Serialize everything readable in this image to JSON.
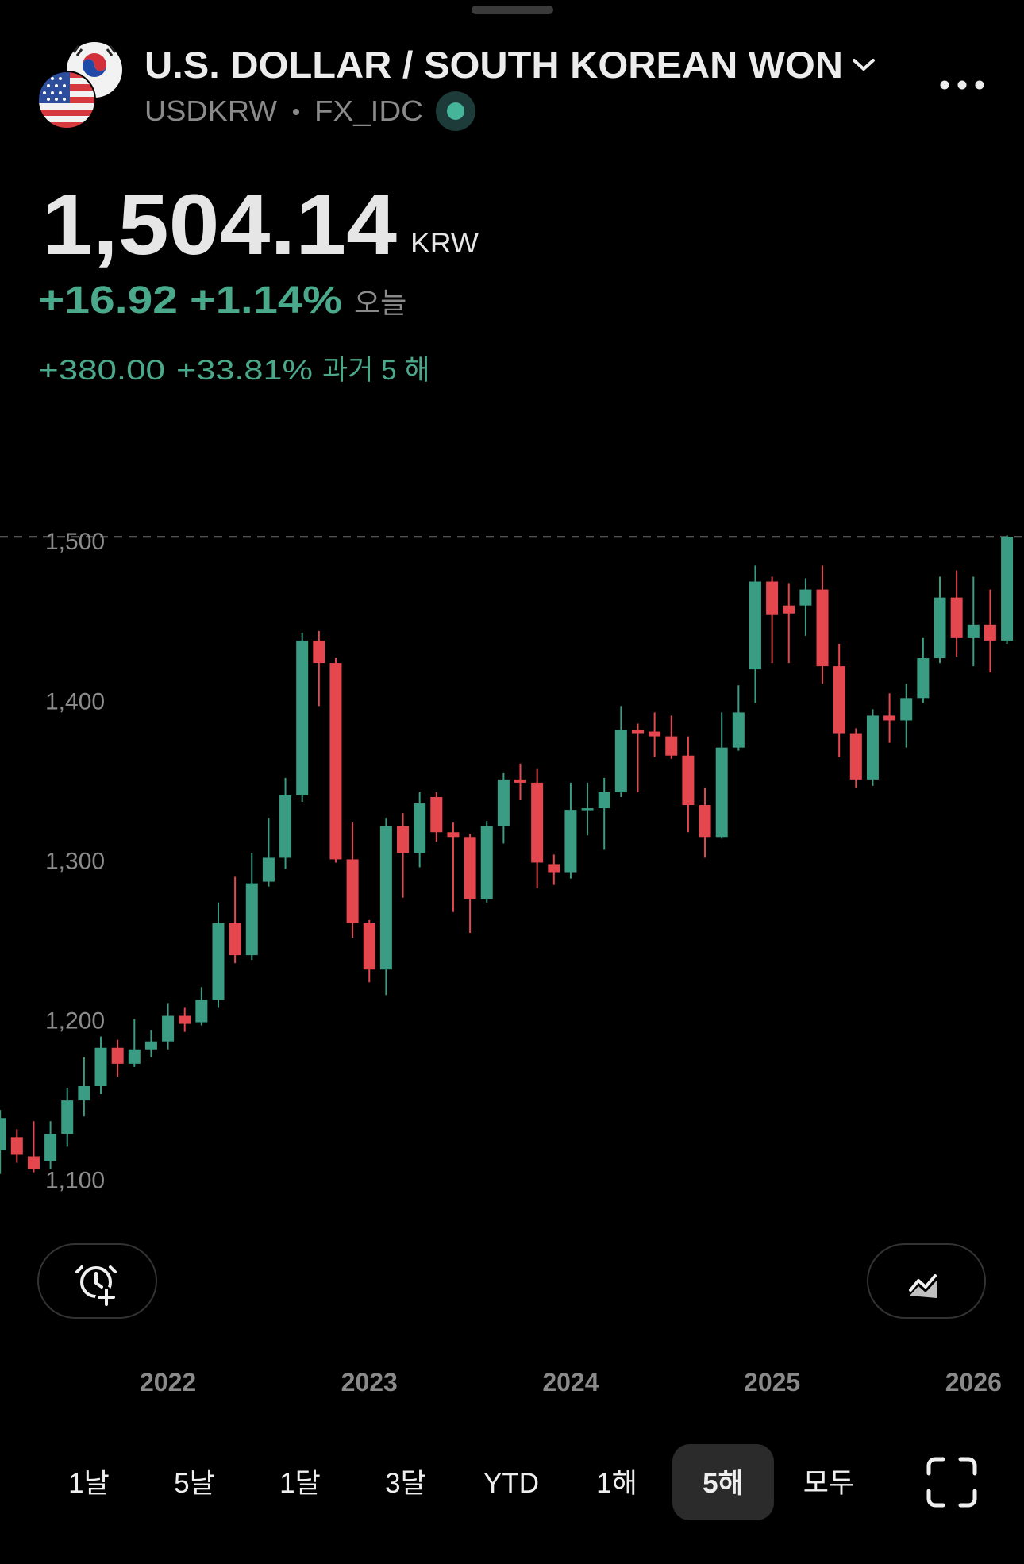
{
  "header": {
    "title": "U.S. DOLLAR / SOUTH KOREAN WON",
    "symbol": "USDKRW",
    "exchange": "FX_IDC"
  },
  "quote": {
    "price": "1,504.14",
    "currency": "KRW",
    "day_change": "+16.92",
    "day_change_pct": "+1.14%",
    "day_label": "오늘",
    "period_change": "+380.00",
    "period_change_pct": "+33.81%",
    "period_label": "과거 5 해"
  },
  "chart_data": {
    "type": "candlestick",
    "categories": [
      null,
      null,
      null,
      null,
      null,
      null,
      null,
      null,
      null,
      null,
      "2022",
      null,
      null,
      null,
      null,
      null,
      null,
      null,
      null,
      null,
      null,
      null,
      "2023",
      null,
      null,
      null,
      null,
      null,
      null,
      null,
      null,
      null,
      null,
      null,
      "2024",
      null,
      null,
      null,
      null,
      null,
      null,
      null,
      null,
      null,
      null,
      null,
      "2025",
      null,
      null,
      null,
      null,
      null,
      null,
      null,
      null,
      null,
      null,
      null,
      "2026",
      null,
      null
    ],
    "open": [
      1120,
      1128,
      1116,
      1113,
      1130,
      1151,
      1160,
      1184,
      1174,
      1183,
      1188,
      1204,
      1200,
      1214,
      1262,
      1242,
      1288,
      1303,
      1342,
      1439,
      1425,
      1302,
      1262,
      1233,
      1323,
      1306,
      1341,
      1319,
      1316,
      1277,
      1323,
      1352,
      1350,
      1299,
      1294,
      1333,
      1334,
      1344,
      1383,
      1382,
      1379,
      1367,
      1336,
      1316,
      1372,
      1421,
      1476,
      1461,
      1461,
      1471,
      1423,
      1381,
      1352,
      1392,
      1389,
      1403,
      1428,
      1466,
      1441,
      1449,
      1439
    ],
    "high": [
      1145,
      1133,
      1138,
      1138,
      1159,
      1178,
      1191,
      1189,
      1202,
      1195,
      1212,
      1209,
      1222,
      1275,
      1291,
      1306,
      1328,
      1353,
      1444,
      1445,
      1428,
      1325,
      1264,
      1328,
      1331,
      1344,
      1344,
      1325,
      1318,
      1326,
      1356,
      1362,
      1359,
      1305,
      1350,
      1350,
      1353,
      1398,
      1387,
      1394,
      1392,
      1379,
      1347,
      1394,
      1411,
      1486,
      1479,
      1475,
      1478,
      1486,
      1437,
      1384,
      1396,
      1406,
      1412,
      1441,
      1479,
      1483,
      1479,
      1471,
      1505
    ],
    "low": [
      1105,
      1112,
      1106,
      1108,
      1122,
      1141,
      1155,
      1166,
      1172,
      1178,
      1183,
      1194,
      1198,
      1209,
      1237,
      1239,
      1285,
      1296,
      1338,
      1398,
      1300,
      1253,
      1225,
      1217,
      1278,
      1297,
      1313,
      1269,
      1256,
      1275,
      1312,
      1339,
      1284,
      1286,
      1290,
      1317,
      1308,
      1341,
      1344,
      1366,
      1365,
      1319,
      1303,
      1315,
      1370,
      1400,
      1425,
      1425,
      1442,
      1412,
      1366,
      1347,
      1348,
      1375,
      1372,
      1400,
      1425,
      1429,
      1423,
      1419,
      1437
    ],
    "close": [
      1140,
      1117,
      1108,
      1130,
      1151,
      1160,
      1184,
      1174,
      1183,
      1188,
      1204,
      1199,
      1214,
      1262,
      1242,
      1287,
      1303,
      1342,
      1439,
      1425,
      1302,
      1262,
      1233,
      1323,
      1306,
      1337,
      1319,
      1316,
      1277,
      1323,
      1352,
      1350,
      1300,
      1294,
      1333,
      1334,
      1344,
      1383,
      1381,
      1379,
      1367,
      1336,
      1316,
      1372,
      1394,
      1476,
      1455,
      1456,
      1471,
      1423,
      1381,
      1352,
      1392,
      1389,
      1403,
      1428,
      1466,
      1441,
      1449,
      1439,
      1504
    ],
    "up_color": "#3a9c83",
    "down_color": "#e5474f",
    "ylim": [
      1070,
      1522
    ],
    "yticks": [
      {
        "value": 1100,
        "label": "1,100"
      },
      {
        "value": 1200,
        "label": "1,200"
      },
      {
        "value": 1300,
        "label": "1,300"
      },
      {
        "value": 1400,
        "label": "1,400"
      },
      {
        "value": 1500,
        "label": "1,500"
      }
    ],
    "grid": false
  },
  "tabs": [
    {
      "label": "1날",
      "selected": false
    },
    {
      "label": "5날",
      "selected": false
    },
    {
      "label": "1달",
      "selected": false
    },
    {
      "label": "3달",
      "selected": false
    },
    {
      "label": "YTD",
      "selected": false
    },
    {
      "label": "1해",
      "selected": false
    },
    {
      "label": "5해",
      "selected": true
    },
    {
      "label": "모두",
      "selected": false
    }
  ]
}
